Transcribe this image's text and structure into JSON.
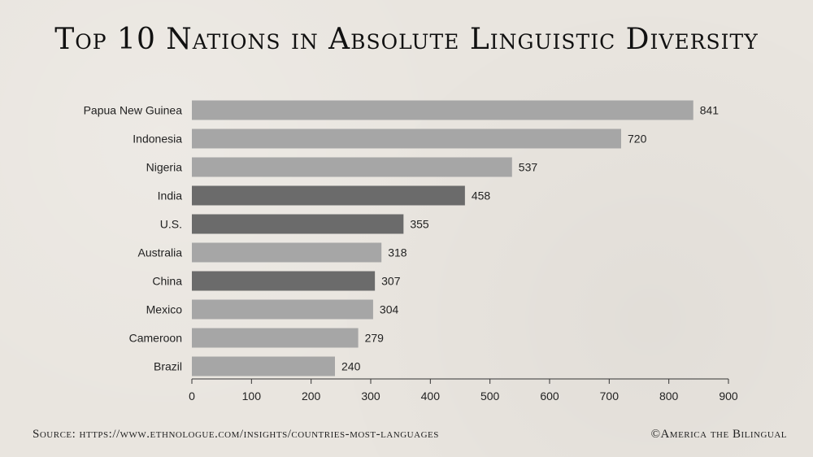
{
  "chart_data": {
    "type": "bar",
    "orientation": "horizontal",
    "title": "Top 10 Nations in Absolute Linguistic Diversity",
    "categories": [
      "Papua New Guinea",
      "Indonesia",
      "Nigeria",
      "India",
      "U.S.",
      "Australia",
      "China",
      "Mexico",
      "Cameroon",
      "Brazil"
    ],
    "values": [
      841,
      720,
      537,
      458,
      355,
      318,
      307,
      304,
      279,
      240
    ],
    "bar_colors": [
      "#a6a6a6",
      "#a6a6a6",
      "#a6a6a6",
      "#6b6b6b",
      "#6b6b6b",
      "#a6a6a6",
      "#6b6b6b",
      "#a6a6a6",
      "#a6a6a6",
      "#a6a6a6"
    ],
    "xlim": [
      0,
      900
    ],
    "xticks": [
      0,
      100,
      200,
      300,
      400,
      500,
      600,
      700,
      800,
      900
    ],
    "xlabel": "",
    "ylabel": "",
    "data_labels": true,
    "grid": false
  },
  "footer": {
    "source": "Source: https://www.ethnologue.com/insights/countries-most-languages",
    "credit": "©America the Bilingual"
  }
}
